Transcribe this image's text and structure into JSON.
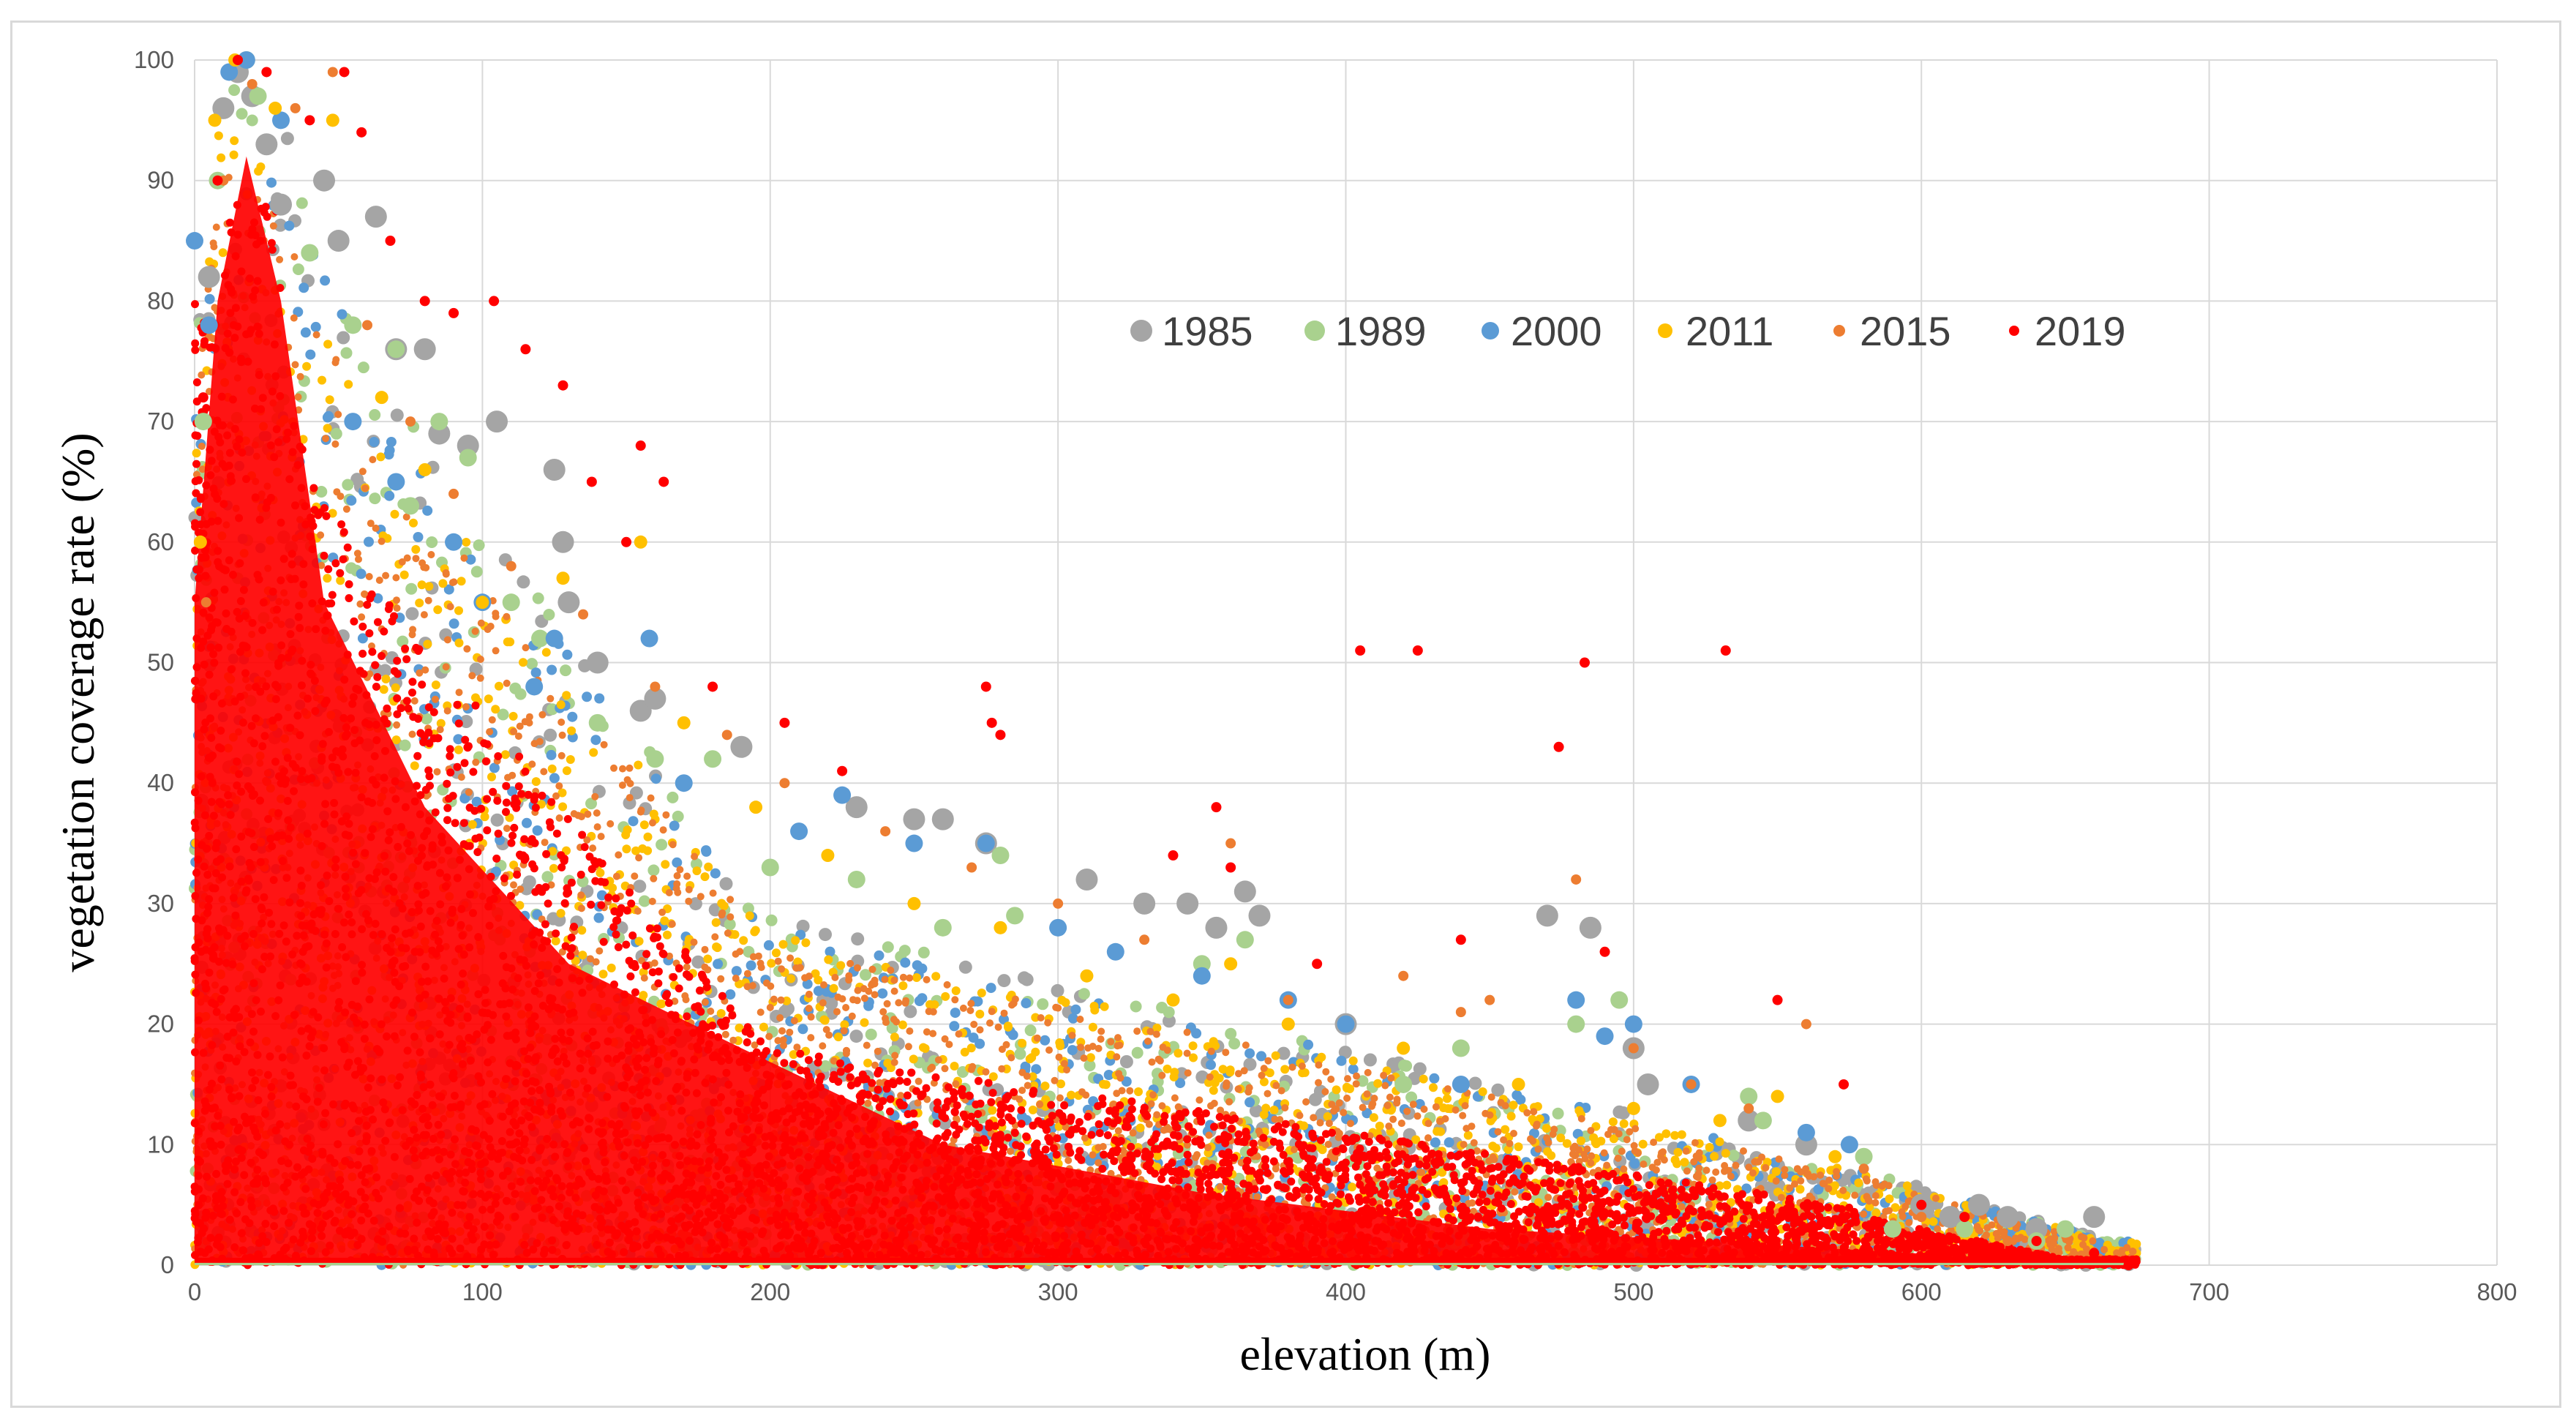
{
  "chart_data": {
    "type": "scatter",
    "xlabel": "elevation (m)",
    "ylabel": "vegetation coverage rate (%)",
    "xlim": [
      0,
      800
    ],
    "ylim": [
      0,
      100
    ],
    "x_ticks": [
      "0",
      "100",
      "200",
      "300",
      "400",
      "500",
      "600",
      "700",
      "800"
    ],
    "y_ticks": [
      "0",
      "10",
      "20",
      "30",
      "40",
      "50",
      "60",
      "70",
      "80",
      "90",
      "100"
    ],
    "grid": true,
    "legend_position": "upper-center",
    "series": [
      {
        "name": "1985",
        "color": "#a5a5a5",
        "marker": "large-circle",
        "points": [
          [
            5,
            82
          ],
          [
            10,
            96
          ],
          [
            15,
            99
          ],
          [
            20,
            97
          ],
          [
            25,
            93
          ],
          [
            30,
            88
          ],
          [
            45,
            90
          ],
          [
            50,
            85
          ],
          [
            63,
            87
          ],
          [
            70,
            76
          ],
          [
            80,
            76
          ],
          [
            85,
            69
          ],
          [
            95,
            68
          ],
          [
            105,
            70
          ],
          [
            125,
            66
          ],
          [
            128,
            60
          ],
          [
            130,
            55
          ],
          [
            140,
            50
          ],
          [
            155,
            46
          ],
          [
            160,
            47
          ],
          [
            190,
            43
          ],
          [
            230,
            38
          ],
          [
            250,
            37
          ],
          [
            260,
            37
          ],
          [
            275,
            35
          ],
          [
            310,
            32
          ],
          [
            330,
            30
          ],
          [
            345,
            30
          ],
          [
            355,
            28
          ],
          [
            365,
            31
          ],
          [
            370,
            29
          ],
          [
            400,
            20
          ],
          [
            470,
            29
          ],
          [
            485,
            28
          ],
          [
            500,
            18
          ],
          [
            505,
            15
          ],
          [
            540,
            12
          ],
          [
            560,
            10
          ],
          [
            600,
            5
          ],
          [
            610,
            4
          ],
          [
            620,
            5
          ],
          [
            630,
            4
          ],
          [
            640,
            3
          ],
          [
            660,
            4
          ]
        ]
      },
      {
        "name": "1989",
        "color": "#a9d18e",
        "marker": "circle",
        "points": [
          [
            3,
            70
          ],
          [
            8,
            90
          ],
          [
            18,
            100
          ],
          [
            22,
            97
          ],
          [
            40,
            84
          ],
          [
            55,
            78
          ],
          [
            70,
            76
          ],
          [
            75,
            63
          ],
          [
            85,
            70
          ],
          [
            95,
            67
          ],
          [
            110,
            55
          ],
          [
            120,
            52
          ],
          [
            140,
            45
          ],
          [
            160,
            42
          ],
          [
            180,
            42
          ],
          [
            200,
            33
          ],
          [
            230,
            32
          ],
          [
            260,
            28
          ],
          [
            280,
            34
          ],
          [
            285,
            29
          ],
          [
            350,
            25
          ],
          [
            365,
            27
          ],
          [
            420,
            15
          ],
          [
            440,
            18
          ],
          [
            480,
            20
          ],
          [
            495,
            22
          ],
          [
            540,
            14
          ],
          [
            545,
            12
          ],
          [
            580,
            9
          ],
          [
            590,
            3
          ],
          [
            615,
            3
          ],
          [
            640,
            2
          ],
          [
            650,
            3
          ]
        ]
      },
      {
        "name": "2000",
        "color": "#5b9bd5",
        "marker": "circle",
        "points": [
          [
            0,
            85
          ],
          [
            5,
            78
          ],
          [
            12,
            99
          ],
          [
            18,
            100
          ],
          [
            30,
            95
          ],
          [
            55,
            70
          ],
          [
            70,
            65
          ],
          [
            90,
            60
          ],
          [
            100,
            55
          ],
          [
            118,
            48
          ],
          [
            125,
            52
          ],
          [
            158,
            52
          ],
          [
            170,
            40
          ],
          [
            210,
            36
          ],
          [
            225,
            39
          ],
          [
            250,
            35
          ],
          [
            275,
            35
          ],
          [
            300,
            28
          ],
          [
            320,
            26
          ],
          [
            350,
            24
          ],
          [
            380,
            22
          ],
          [
            400,
            20
          ],
          [
            440,
            15
          ],
          [
            480,
            22
          ],
          [
            490,
            19
          ],
          [
            500,
            20
          ],
          [
            520,
            15
          ],
          [
            560,
            11
          ],
          [
            575,
            10
          ]
        ]
      },
      {
        "name": "2011",
        "color": "#ffc000",
        "marker": "small-circle",
        "points": [
          [
            2,
            60
          ],
          [
            7,
            95
          ],
          [
            14,
            100
          ],
          [
            28,
            96
          ],
          [
            48,
            95
          ],
          [
            65,
            72
          ],
          [
            80,
            66
          ],
          [
            100,
            55
          ],
          [
            128,
            57
          ],
          [
            155,
            60
          ],
          [
            170,
            45
          ],
          [
            195,
            38
          ],
          [
            220,
            34
          ],
          [
            250,
            30
          ],
          [
            280,
            28
          ],
          [
            310,
            24
          ],
          [
            340,
            22
          ],
          [
            360,
            25
          ],
          [
            380,
            20
          ],
          [
            420,
            18
          ],
          [
            460,
            15
          ],
          [
            500,
            13
          ],
          [
            530,
            12
          ],
          [
            550,
            14
          ],
          [
            570,
            9
          ]
        ]
      },
      {
        "name": "2015",
        "color": "#ed7d31",
        "marker": "tiny-circle",
        "points": [
          [
            4,
            55
          ],
          [
            10,
            90
          ],
          [
            20,
            98
          ],
          [
            35,
            96
          ],
          [
            48,
            99
          ],
          [
            60,
            78
          ],
          [
            75,
            70
          ],
          [
            90,
            64
          ],
          [
            110,
            58
          ],
          [
            135,
            54
          ],
          [
            160,
            48
          ],
          [
            185,
            44
          ],
          [
            205,
            40
          ],
          [
            240,
            36
          ],
          [
            270,
            33
          ],
          [
            300,
            30
          ],
          [
            330,
            27
          ],
          [
            360,
            35
          ],
          [
            380,
            22
          ],
          [
            420,
            24
          ],
          [
            440,
            21
          ],
          [
            450,
            22
          ],
          [
            480,
            32
          ],
          [
            500,
            18
          ],
          [
            520,
            15
          ],
          [
            540,
            13
          ],
          [
            560,
            20
          ],
          [
            580,
            8
          ],
          [
            600,
            4
          ],
          [
            630,
            2
          ]
        ]
      },
      {
        "name": "2019",
        "color": "#ff0000",
        "marker": "tiny-circle",
        "points": [
          [
            3,
            72
          ],
          [
            8,
            90
          ],
          [
            15,
            100
          ],
          [
            25,
            99
          ],
          [
            40,
            95
          ],
          [
            52,
            99
          ],
          [
            58,
            94
          ],
          [
            68,
            85
          ],
          [
            80,
            80
          ],
          [
            90,
            79
          ],
          [
            104,
            80
          ],
          [
            115,
            76
          ],
          [
            128,
            73
          ],
          [
            138,
            65
          ],
          [
            150,
            60
          ],
          [
            155,
            68
          ],
          [
            163,
            65
          ],
          [
            180,
            48
          ],
          [
            205,
            45
          ],
          [
            225,
            41
          ],
          [
            275,
            48
          ],
          [
            277,
            45
          ],
          [
            280,
            44
          ],
          [
            340,
            34
          ],
          [
            355,
            38
          ],
          [
            360,
            33
          ],
          [
            390,
            25
          ],
          [
            405,
            51
          ],
          [
            425,
            51
          ],
          [
            440,
            27
          ],
          [
            474,
            43
          ],
          [
            483,
            50
          ],
          [
            490,
            26
          ],
          [
            532,
            51
          ],
          [
            550,
            22
          ],
          [
            573,
            15
          ],
          [
            600,
            5
          ],
          [
            615,
            4
          ],
          [
            640,
            2
          ],
          [
            660,
            1
          ],
          [
            672,
            0
          ]
        ]
      }
    ]
  }
}
